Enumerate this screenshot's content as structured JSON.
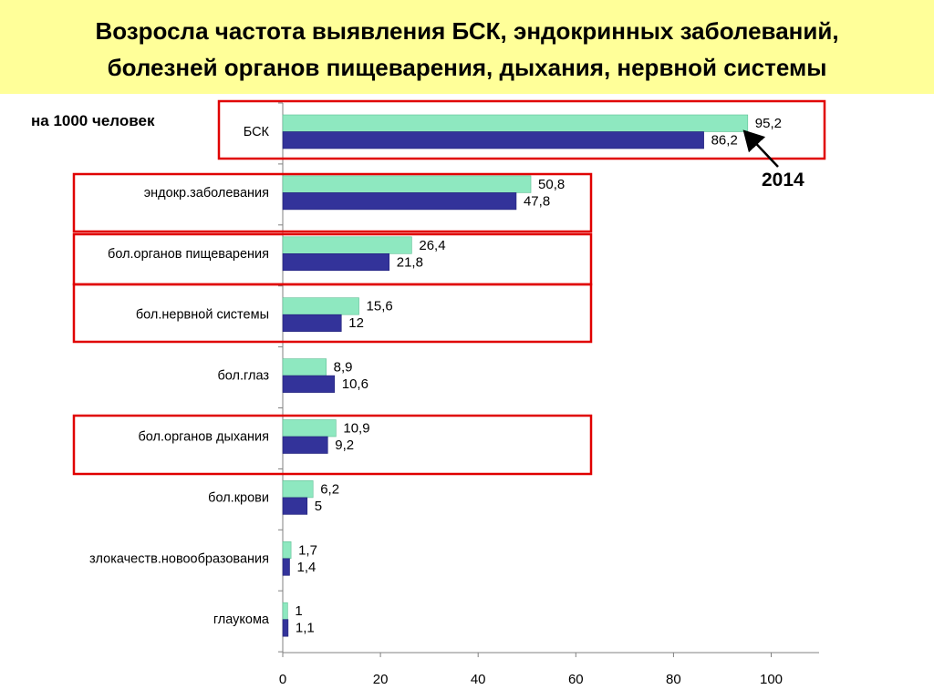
{
  "title": {
    "line1": "Возросла частота выявления БСК, эндокринных заболеваний,",
    "line2": "болезней органов пищеварения, дыхания, нервной системы"
  },
  "units_label": "на 1000 человек",
  "year_annotation": "2014",
  "colors": {
    "title_background": "#ffff99",
    "series_2014": "#8ee8c0",
    "series_other": "#33339a",
    "highlight_box": "#e00000",
    "arrow": "#000000"
  },
  "chart_data": {
    "type": "bar",
    "orientation": "horizontal",
    "categories": [
      "БСК",
      "эндокр.заболевания",
      "бол.органов пищеварения",
      "бол.нервной системы",
      "бол.глаз",
      "бол.органов дыхания",
      "бол.крови",
      "злокачеств.новообразования",
      "глаукома"
    ],
    "series": [
      {
        "name": "2014",
        "values": [
          95.2,
          50.8,
          26.4,
          15.6,
          8.9,
          10.9,
          6.2,
          1.7,
          1
        ],
        "labels": [
          "95,2",
          "50,8",
          "26,4",
          "15,6",
          "8,9",
          "10,9",
          "6,2",
          "1,7",
          "1"
        ]
      },
      {
        "values": [
          86.2,
          47.8,
          21.8,
          12,
          10.6,
          9.2,
          5,
          1.4,
          1.1
        ],
        "labels": [
          "86,2",
          "47,8",
          "21,8",
          "12",
          "10,6",
          "9,2",
          "5",
          "1,4",
          "1,1"
        ]
      }
    ],
    "xlim": [
      0,
      110
    ],
    "xticks": [
      0,
      20,
      40,
      60,
      80,
      100
    ],
    "xtick_labels": [
      "0",
      "20",
      "40",
      "60",
      "80",
      "100"
    ],
    "highlighted_categories": [
      "БСК",
      "эндокр.заболевания",
      "бол.органов пищеварения",
      "бол.нервной системы",
      "бол.органов дыхания"
    ],
    "grid": false,
    "legend": "none"
  }
}
